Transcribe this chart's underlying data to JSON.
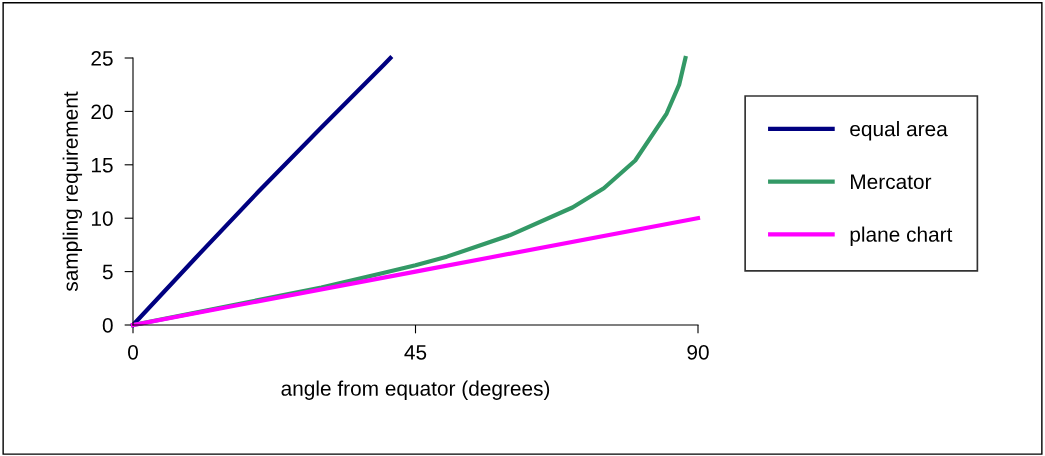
{
  "chart_data": {
    "type": "line",
    "xlabel": "angle from equator (degrees)",
    "ylabel": "sampling requirement",
    "xlim": [
      0,
      90
    ],
    "ylim": [
      0,
      25
    ],
    "xticks": [
      0,
      45,
      90
    ],
    "yticks": [
      0,
      5,
      10,
      15,
      20,
      25
    ],
    "grid": false,
    "legend": "right",
    "marker": "none",
    "line_style": "solid",
    "series": [
      {
        "name": "equal area",
        "color": "#000080",
        "x": [
          0,
          10,
          20,
          30,
          40,
          41
        ],
        "values": [
          0,
          6.3,
          12.5,
          18.5,
          24.4,
          25
        ]
      },
      {
        "name": "Mercator",
        "color": "#339966",
        "x": [
          0,
          30,
          40,
          45,
          50,
          60,
          70,
          75,
          80,
          85,
          87,
          88
        ],
        "values": [
          0,
          3.5,
          4.9,
          5.6,
          6.4,
          8.4,
          11,
          12.8,
          15.4,
          19.8,
          22.5,
          25
        ]
      },
      {
        "name": "plane chart",
        "color": "#ff00ff",
        "x": [
          0,
          45,
          90
        ],
        "values": [
          0,
          5,
          10
        ]
      }
    ]
  }
}
